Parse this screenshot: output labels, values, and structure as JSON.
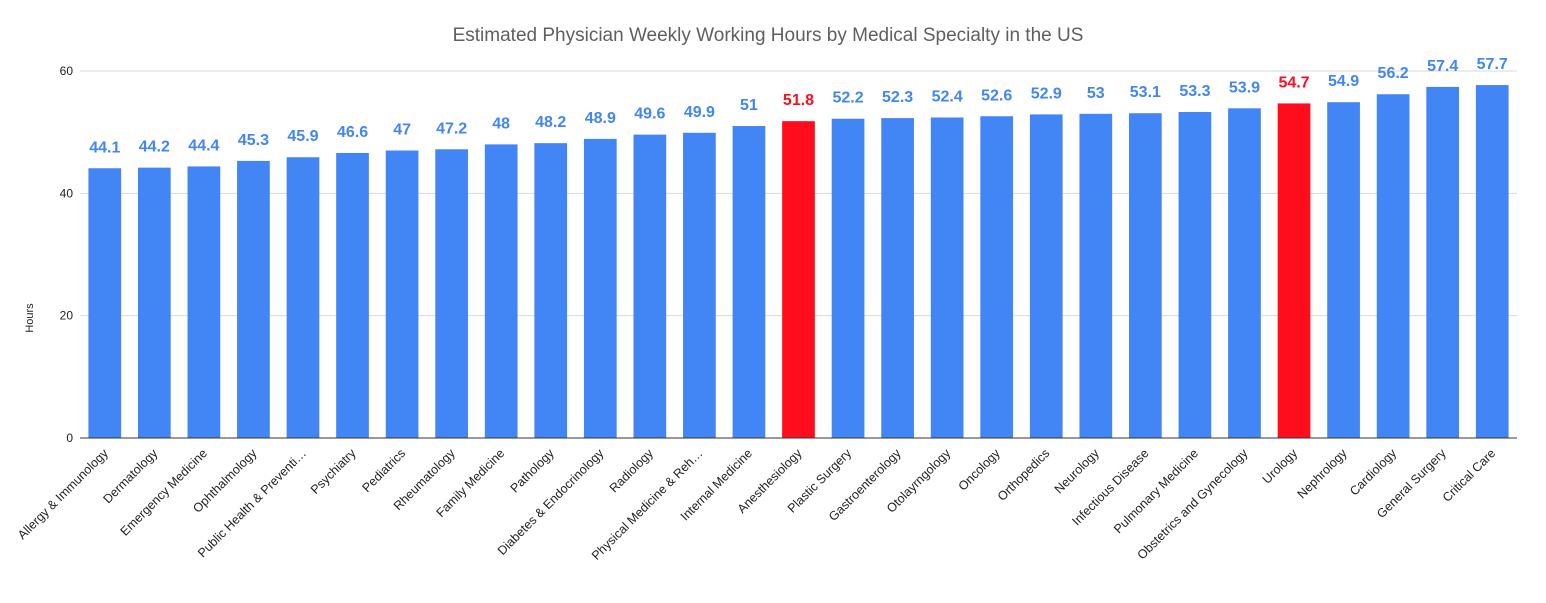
{
  "chart_data": {
    "type": "bar",
    "title": "Estimated Physician Weekly Working Hours by Medical Specialty in the US",
    "xlabel": "",
    "ylabel": "Hours",
    "ylim": [
      0,
      60
    ],
    "yticks": [
      0,
      20,
      40,
      60
    ],
    "grid": true,
    "legend": "none",
    "colors": {
      "default": "#4285f4",
      "highlight": "#ff0d1c"
    },
    "categories": [
      "Allergy & Immunology",
      "Dermatology",
      "Emergency Medicine",
      "Ophthalmology",
      "Public Health & Preventi…",
      "Psychiatry",
      "Pediatrics",
      "Rheumatology",
      "Family Medicine",
      "Pathology",
      "Diabetes & Endocrinology",
      "Radiology",
      "Physical Medicine & Reh…",
      "Internal Medicine",
      "Anesthesiology",
      "Plastic Surgery",
      "Gastroenterology",
      "Otolayrngology",
      "Oncology",
      "Orthopedics",
      "Neurology",
      "Infectious Disease",
      "Pulmonary Medicine",
      "Obstetrics and Gynecology",
      "Urology",
      "Nephrology",
      "Cardiology",
      "General Surgery",
      "Critical Care"
    ],
    "values": [
      44.1,
      44.2,
      44.4,
      45.3,
      45.9,
      46.6,
      47,
      47.2,
      48,
      48.2,
      48.9,
      49.6,
      49.9,
      51,
      51.8,
      52.2,
      52.3,
      52.4,
      52.6,
      52.9,
      53,
      53.1,
      53.3,
      53.9,
      54.7,
      54.9,
      56.2,
      57.4,
      57.7
    ],
    "highlighted": [
      "Anesthesiology",
      "Urology"
    ]
  }
}
